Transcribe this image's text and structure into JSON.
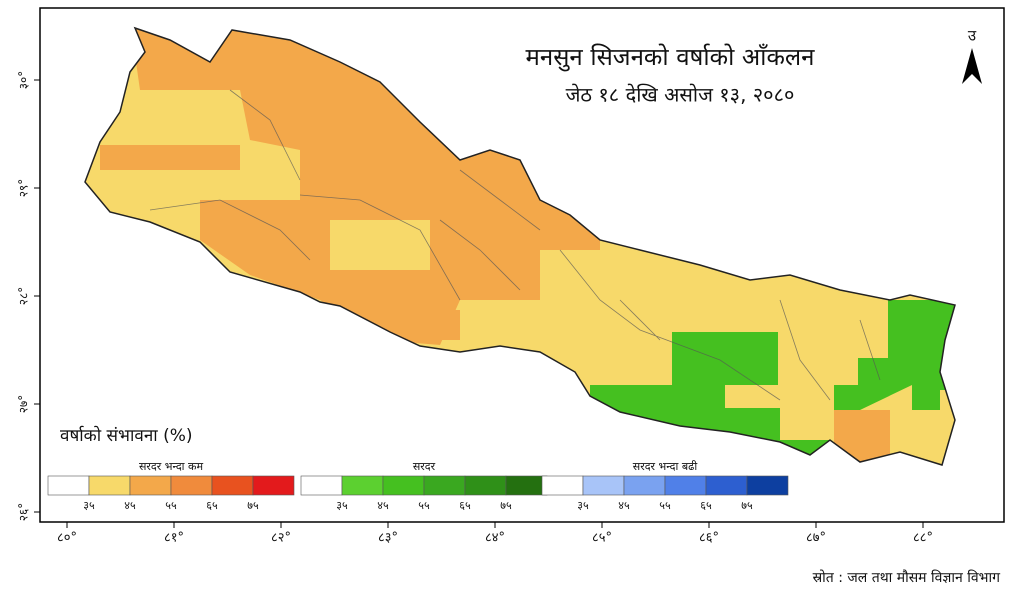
{
  "title": "मनसुन सिजनको वर्षाको आँकलन",
  "subtitle": "जेठ १८ देखि असोज १३, २०८०",
  "north": "उ",
  "legend_title": "वर्षाको संभावना (%)",
  "legend": [
    {
      "label": "सरदर भन्दा कम",
      "colors": [
        "#ffffff",
        "#f7d96a",
        "#f3a84a",
        "#f08b3c",
        "#e8521f",
        "#e31a1c"
      ],
      "ticks": [
        "३५",
        "४५",
        "५५",
        "६५",
        "७५"
      ]
    },
    {
      "label": "सरदर",
      "colors": [
        "#ffffff",
        "#5cd030",
        "#45c020",
        "#3aa820",
        "#2f9018",
        "#247010"
      ],
      "ticks": [
        "३५",
        "४५",
        "५५",
        "६५",
        "७५"
      ]
    },
    {
      "label": "सरदर भन्दा बढी",
      "colors": [
        "#ffffff",
        "#a8c4f8",
        "#7aa2f0",
        "#5080e8",
        "#2d5fd0",
        "#0d3fa0"
      ],
      "ticks": [
        "३५",
        "४५",
        "५५",
        "६५",
        "७५"
      ]
    }
  ],
  "x_ticks": [
    "८०°",
    "८१°",
    "८२°",
    "८३°",
    "८४°",
    "८५°",
    "८६°",
    "८७°",
    "८८°"
  ],
  "y_ticks": [
    "३०°",
    "२९°",
    "२८°",
    "२७°",
    "२६°"
  ],
  "source": "स्रोत : जल तथा मौसम विज्ञान विभाग"
}
